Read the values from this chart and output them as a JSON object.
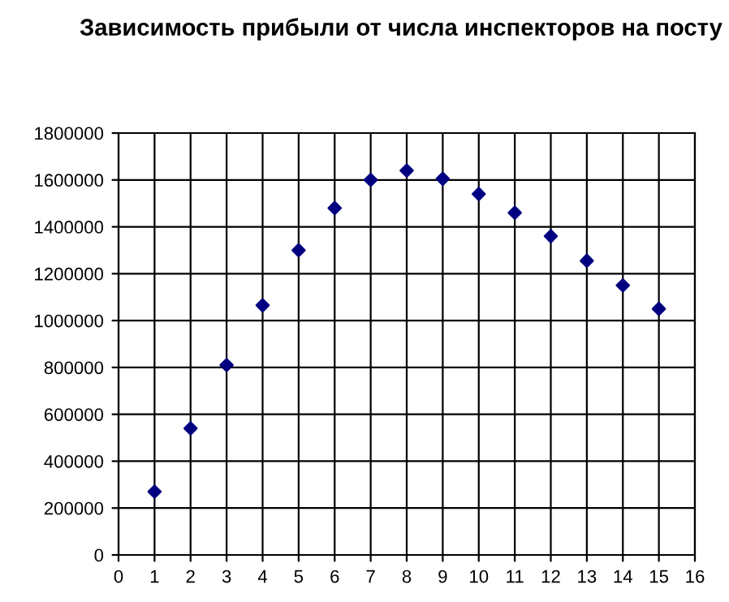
{
  "chart_data": {
    "type": "scatter",
    "title": "Зависимость прибыли от числа инспекторов на посту",
    "x": [
      1,
      2,
      3,
      4,
      5,
      6,
      7,
      8,
      9,
      10,
      11,
      12,
      13,
      14,
      15
    ],
    "series": [
      {
        "color": "#000080",
        "values": [
          270000,
          540000,
          810000,
          1065000,
          1300000,
          1480000,
          1600000,
          1640000,
          1605000,
          1540000,
          1460000,
          1360000,
          1255000,
          1150000,
          1050000
        ]
      }
    ],
    "xlim": [
      0,
      16
    ],
    "xticks": [
      0,
      1,
      2,
      3,
      4,
      5,
      6,
      7,
      8,
      9,
      10,
      11,
      12,
      13,
      14,
      15,
      16
    ],
    "ylim": [
      0,
      1800000
    ],
    "yticks": [
      0,
      200000,
      400000,
      600000,
      800000,
      1000000,
      1200000,
      1400000,
      1600000,
      1800000
    ],
    "grid": true,
    "marker": "diamond"
  }
}
